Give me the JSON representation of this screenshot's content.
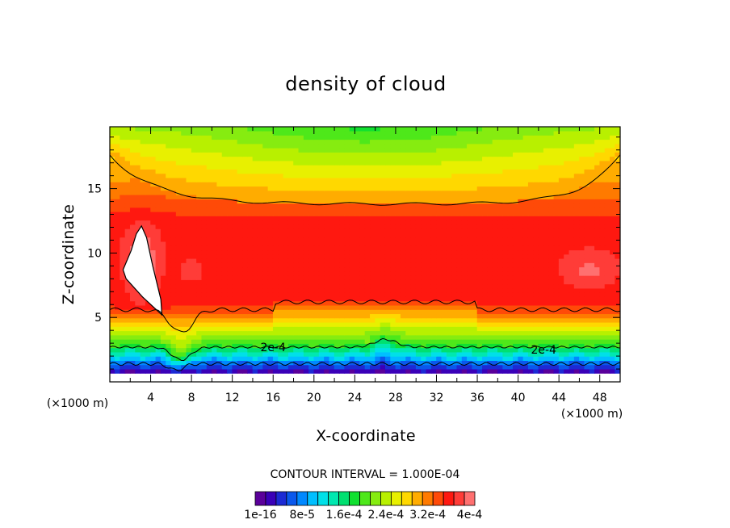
{
  "chart_data": {
    "type": "heatmap",
    "title": "density of cloud",
    "xlabel": "X-coordinate",
    "ylabel": "Z-coordinate",
    "x_unit_label": "(×1000 m)",
    "y_unit_label": "(×1000 m)",
    "xlim": [
      0,
      50
    ],
    "ylim": [
      0,
      19.8
    ],
    "x_ticks": [
      "4",
      "8",
      "12",
      "16",
      "20",
      "24",
      "28",
      "32",
      "36",
      "40",
      "44",
      "48"
    ],
    "y_ticks": [
      "5",
      "10",
      "15"
    ],
    "contour_interval_text": "CONTOUR INTERVAL = 1.000E-04",
    "colorbar_labels": [
      "1e-16",
      "8e-5",
      "1.6e-4",
      "2.4e-4",
      "3.2e-4",
      "4e-4"
    ],
    "contour_labels": [
      {
        "text": "2e-4",
        "x": 16.0,
        "z": 2.7
      },
      {
        "text": "2e-4",
        "x": 42.5,
        "z": 2.5
      }
    ],
    "levels": [
      1e-16,
      2e-05,
      4e-05,
      6e-05,
      8e-05,
      0.0001,
      0.00012,
      0.00014,
      0.00016,
      0.00018,
      0.0002,
      0.00022,
      0.00024,
      0.00026,
      0.00028,
      0.0003,
      0.00032,
      0.00034,
      0.00036,
      0.00038,
      0.0004
    ],
    "palette": [
      "#5a009a",
      "#3a00b8",
      "#1c2ad4",
      "#0a58ec",
      "#0088ff",
      "#00bfff",
      "#00e0e8",
      "#00e8b0",
      "#00e070",
      "#10e030",
      "#4ee81a",
      "#86ec10",
      "#b8f000",
      "#e8f000",
      "#ffd800",
      "#ffac00",
      "#ff7a00",
      "#ff4a08",
      "#ff1810",
      "#ff3c38",
      "#ff7070"
    ],
    "grid": false
  }
}
